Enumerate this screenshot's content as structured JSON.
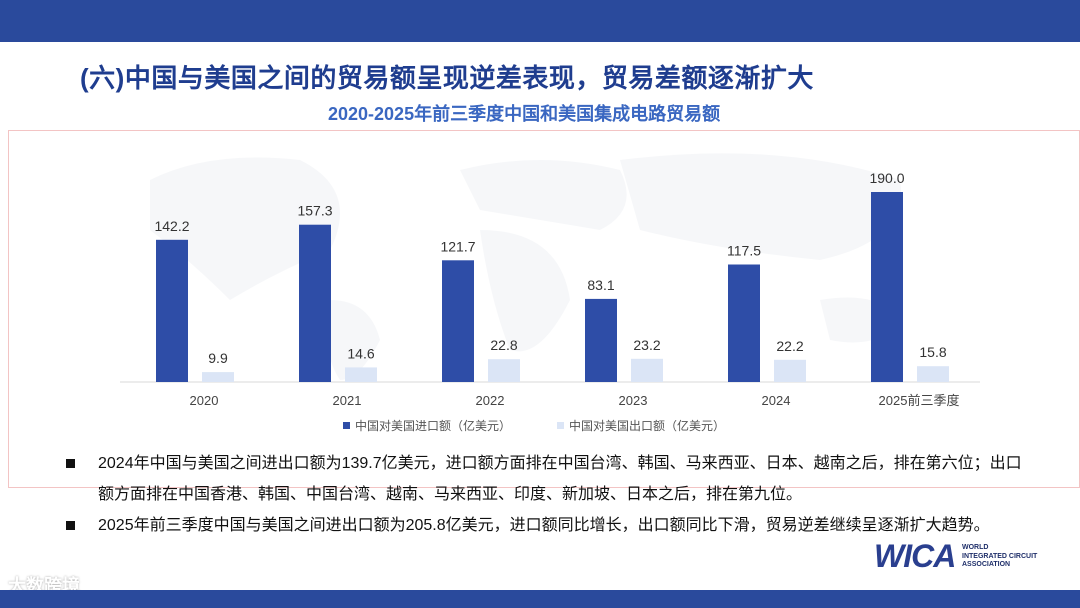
{
  "slide_title": "(六)中国与美国之间的贸易额呈现逆差表现，贸易差额逐渐扩大",
  "colors": {
    "bar_blue": "#2e4da7",
    "bar_light": "#dbe5f6",
    "header": "#2a4a9c",
    "title": "#1f3d8f"
  },
  "chart_data": {
    "type": "bar",
    "title": "2020-2025年前三季度中国和美国集成电路贸易额",
    "categories": [
      "2020",
      "2021",
      "2022",
      "2023",
      "2024",
      "2025前三季度"
    ],
    "series": [
      {
        "name": "中国对美国进口额（亿美元）",
        "values": [
          142.2,
          157.3,
          121.7,
          83.1,
          117.5,
          190.0
        ],
        "labels": [
          "142.2",
          "157.3",
          "121.7",
          "83.1",
          "117.5",
          "190.0"
        ]
      },
      {
        "name": "中国对美国出口额（亿美元）",
        "values": [
          9.9,
          14.6,
          22.8,
          23.2,
          22.2,
          15.8
        ],
        "labels": [
          "9.9",
          "14.6",
          "22.8",
          "23.2",
          "22.2",
          "15.8"
        ]
      }
    ],
    "ylim": [
      0,
      200
    ],
    "legend": "bottom",
    "grid": false
  },
  "bullets": [
    "2024年中国与美国之间进出口额为139.7亿美元，进口额方面排在中国台湾、韩国、马来西亚、日本、越南之后，排在第六位；出口额方面排在中国香港、韩国、中国台湾、越南、马来西亚、印度、新加坡、日本之后，排在第九位。",
    "2025年前三季度中国与美国之间进出口额为205.8亿美元，进口额同比增长，出口额同比下滑，贸易逆差继续呈逐渐扩大趋势。"
  ],
  "logo": {
    "text": "WICA",
    "sub": [
      "WORLD",
      "INTEGRATED CIRCUIT",
      "ASSOCIATION"
    ]
  },
  "watermark": "大数跨境"
}
